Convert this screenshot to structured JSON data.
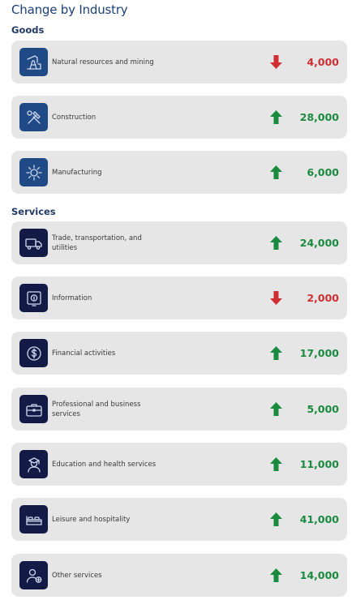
{
  "title": "Change by Industry",
  "colors": {
    "up": "#1a8a3e",
    "down": "#cf2f33",
    "goods_icon_bg": "#1f4a86",
    "services_icon_bg": "#131a45",
    "card_bg": "#e6e6e6"
  },
  "chart_data": {
    "type": "table",
    "title": "Change by Industry",
    "groups": [
      {
        "name": "Goods",
        "items": [
          {
            "label": "Natural resources and mining",
            "value": "4,000",
            "direction": "down",
            "change": -4000,
            "icon": "oil-pump-icon"
          },
          {
            "label": "Construction",
            "value": "28,000",
            "direction": "up",
            "change": 28000,
            "icon": "hammer-wrench-icon"
          },
          {
            "label": "Manufacturing",
            "value": "6,000",
            "direction": "up",
            "change": 6000,
            "icon": "gear-icon"
          }
        ]
      },
      {
        "name": "Services",
        "items": [
          {
            "label": "Trade, transportation, and utilities",
            "value": "24,000",
            "direction": "up",
            "change": 24000,
            "icon": "truck-icon"
          },
          {
            "label": "Information",
            "value": "2,000",
            "direction": "down",
            "change": -2000,
            "icon": "info-monitor-icon"
          },
          {
            "label": "Financial activities",
            "value": "17,000",
            "direction": "up",
            "change": 17000,
            "icon": "dollar-coin-icon"
          },
          {
            "label": "Professional and business services",
            "value": "5,000",
            "direction": "up",
            "change": 5000,
            "icon": "briefcase-icon"
          },
          {
            "label": "Education and health services",
            "value": "11,000",
            "direction": "up",
            "change": 11000,
            "icon": "graduate-icon"
          },
          {
            "label": "Leisure and hospitality",
            "value": "41,000",
            "direction": "up",
            "change": 41000,
            "icon": "bed-icon"
          },
          {
            "label": "Other services",
            "value": "14,000",
            "direction": "up",
            "change": 14000,
            "icon": "person-plus-icon"
          }
        ]
      }
    ]
  }
}
